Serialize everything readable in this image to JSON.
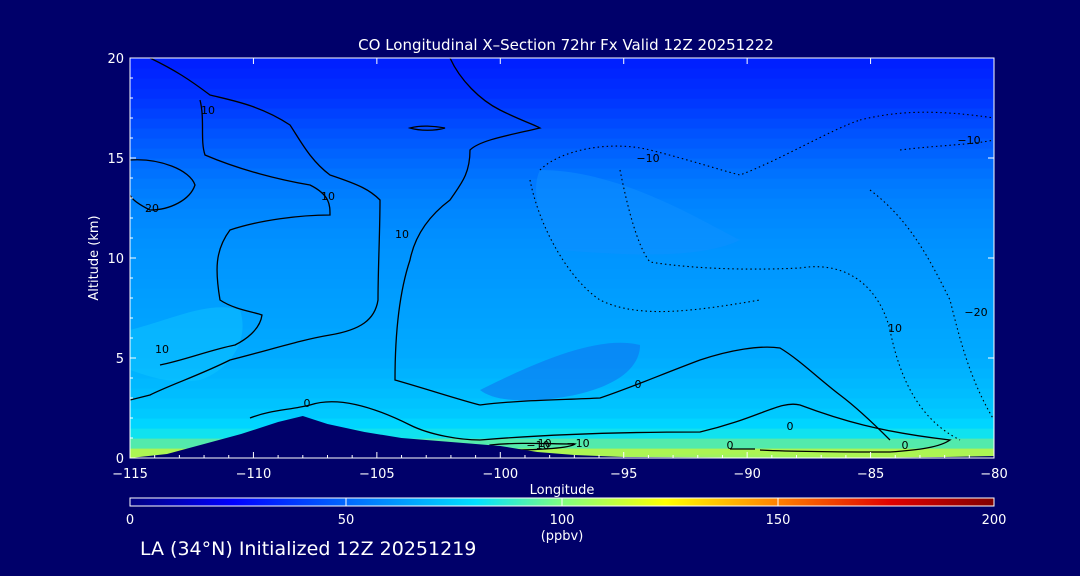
{
  "title": "CO Longitudinal X–Section 72hr  Fx Valid 12Z 20251222",
  "footer": "LA (34°N) Initialized 12Z 20251219",
  "chart_data": {
    "type": "heatmap",
    "title": "CO Longitudinal X–Section 72hr  Fx Valid 12Z 20251222",
    "xlabel": "Longitude",
    "ylabel": "Altitude (km)",
    "xlim": [
      -115,
      -80
    ],
    "ylim": [
      0,
      20
    ],
    "x_ticks": [
      -115,
      -110,
      -105,
      -100,
      -95,
      -90,
      -85,
      -80
    ],
    "x_tick_labels": [
      "−115",
      "−110",
      "−105",
      "−100",
      "−95",
      "−90",
      "−85",
      "−80"
    ],
    "y_ticks": [
      0,
      5,
      10,
      15,
      20
    ],
    "y_tick_labels": [
      "0",
      "5",
      "10",
      "15",
      "20"
    ],
    "colorbar": {
      "label": "(ppbv)",
      "range": [
        0,
        200
      ],
      "ticks": [
        0,
        50,
        100,
        150,
        200
      ],
      "tick_labels": [
        "0",
        "50",
        "100",
        "150",
        "200"
      ],
      "colors": [
        "#000080",
        "#0000ff",
        "#0080ff",
        "#00e0ff",
        "#ffff00",
        "#ff8000",
        "#d00000",
        "#800000"
      ]
    },
    "contour_labels": [
      "0",
      "10",
      "10",
      "10",
      "20",
      "10",
      "10",
      "0",
      "0",
      "0",
      "−10",
      "−10",
      "−10",
      "−10",
      "−20",
      "−10",
      "0"
    ],
    "terrain": {
      "x": [
        -115,
        -113.5,
        -112,
        -110.5,
        -109,
        -108,
        -107,
        -105.5,
        -104,
        -102,
        -100,
        -98.5,
        -97,
        -95,
        -90,
        -85,
        -82,
        -80
      ],
      "y": [
        0,
        0.2,
        0.7,
        1.2,
        1.8,
        2.1,
        1.7,
        1.3,
        1.0,
        0.8,
        0.6,
        0.3,
        0.15,
        0.05,
        0.02,
        0.02,
        0.05,
        0.1
      ]
    },
    "field_profile": {
      "altitude_km": [
        0,
        1,
        2,
        3,
        5,
        8,
        11,
        14,
        16,
        18,
        20
      ],
      "co_ppbv": [
        110,
        90,
        80,
        76,
        70,
        66,
        62,
        55,
        48,
        40,
        35
      ]
    },
    "surface_hotspot": {
      "lon_range": [
        -100,
        -83
      ],
      "peak_ppbv": 120
    }
  }
}
